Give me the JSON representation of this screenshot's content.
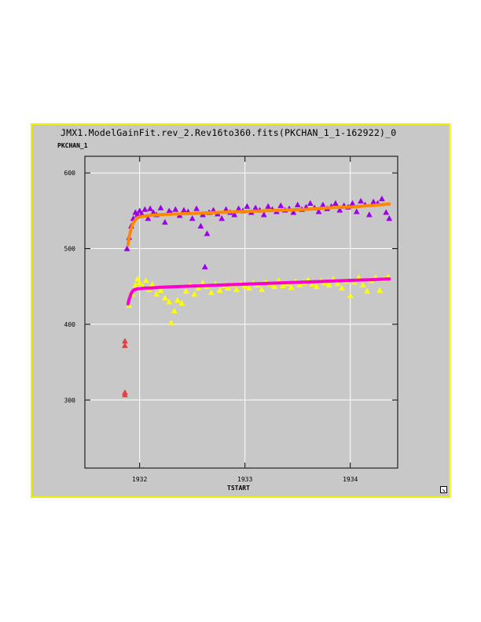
{
  "window": {
    "title": "JMX1.ModelGainFit.rev_2.Rev16to360.fits(PKCHAN_1_1-162922)_0",
    "border_color": "#f0f000",
    "background": "#c8c8c8"
  },
  "resize_icon": "resize-arrow-icon",
  "chart_data": {
    "type": "scatter",
    "title": "JMX1.ModelGainFit.rev_2.Rev16to360.fits(PKCHAN_1_1-162922)_0",
    "xlabel": "TSTART",
    "ylabel": "PKCHAN_1",
    "xlim": [
      1931.48,
      1934.45
    ],
    "ylim": [
      210,
      622
    ],
    "xticks": [
      1932,
      1933,
      1934
    ],
    "yticks": [
      300,
      400,
      500,
      600
    ],
    "grid": true,
    "series": [
      {
        "color": "#9b00e6",
        "marker": "triangle",
        "x": [
          1931.88,
          1931.9,
          1931.92,
          1931.94,
          1931.96,
          1931.98,
          1932.0,
          1932.02,
          1932.05,
          1932.08,
          1932.1,
          1932.13,
          1932.16,
          1932.2,
          1932.24,
          1932.28,
          1932.3,
          1932.34,
          1932.38,
          1932.42,
          1932.46,
          1932.5,
          1932.54,
          1932.58,
          1932.6,
          1932.62,
          1932.64,
          1932.66,
          1932.7,
          1932.74,
          1932.78,
          1932.82,
          1932.86,
          1932.9,
          1932.94,
          1932.98,
          1933.02,
          1933.06,
          1933.1,
          1933.14,
          1933.18,
          1933.22,
          1933.26,
          1933.3,
          1933.34,
          1933.38,
          1933.42,
          1933.46,
          1933.5,
          1933.54,
          1933.58,
          1933.62,
          1933.66,
          1933.7,
          1933.74,
          1933.78,
          1933.82,
          1933.86,
          1933.9,
          1933.94,
          1933.98,
          1934.02,
          1934.06,
          1934.1,
          1934.14,
          1934.18,
          1934.22,
          1934.26,
          1934.3,
          1934.34,
          1934.37
        ],
        "y": [
          500,
          515,
          530,
          540,
          548,
          545,
          550,
          546,
          552,
          540,
          553,
          548,
          545,
          554,
          535,
          550,
          547,
          552,
          544,
          551,
          549,
          540,
          553,
          530,
          545,
          476,
          520,
          548,
          551,
          546,
          540,
          552,
          548,
          545,
          553,
          550,
          556,
          548,
          554,
          551,
          545,
          556,
          552,
          549,
          557,
          551,
          553,
          548,
          558,
          552,
          555,
          560,
          554,
          549,
          558,
          553,
          556,
          560,
          551,
          557,
          555,
          560,
          549,
          563,
          558,
          545,
          562,
          560,
          566,
          548,
          540
        ]
      },
      {
        "color": "#ffff00",
        "marker": "triangle",
        "x": [
          1931.9,
          1931.93,
          1931.96,
          1931.98,
          1932.0,
          1932.03,
          1932.06,
          1932.09,
          1932.12,
          1932.16,
          1932.2,
          1932.24,
          1932.28,
          1932.3,
          1932.33,
          1932.36,
          1932.4,
          1932.44,
          1932.48,
          1932.52,
          1932.56,
          1932.6,
          1932.64,
          1932.68,
          1932.72,
          1932.76,
          1932.8,
          1932.84,
          1932.88,
          1932.92,
          1932.96,
          1933.0,
          1933.04,
          1933.08,
          1933.12,
          1933.16,
          1933.2,
          1933.24,
          1933.28,
          1933.32,
          1933.36,
          1933.4,
          1933.44,
          1933.48,
          1933.52,
          1933.56,
          1933.6,
          1933.64,
          1933.68,
          1933.72,
          1933.76,
          1933.8,
          1933.84,
          1933.88,
          1933.92,
          1933.96,
          1934.0,
          1934.04,
          1934.08,
          1934.12,
          1934.16,
          1934.2,
          1934.24,
          1934.28,
          1934.32,
          1934.36
        ],
        "y": [
          425,
          440,
          452,
          460,
          455,
          450,
          458,
          446,
          453,
          440,
          445,
          435,
          430,
          402,
          418,
          432,
          428,
          444,
          452,
          440,
          448,
          455,
          450,
          442,
          453,
          445,
          451,
          448,
          452,
          446,
          454,
          451,
          448,
          455,
          452,
          446,
          456,
          453,
          450,
          458,
          451,
          454,
          449,
          457,
          452,
          455,
          459,
          453,
          450,
          458,
          455,
          452,
          460,
          454,
          448,
          457,
          438,
          456,
          462,
          452,
          444,
          458,
          462,
          445,
          460,
          463
        ]
      },
      {
        "color": "#ff8800",
        "marker": "line",
        "x": [
          1931.89,
          1931.9,
          1931.92,
          1931.94,
          1931.96,
          1931.98,
          1932.0,
          1932.05,
          1932.1,
          1932.2,
          1932.4,
          1932.6,
          1932.8,
          1933.0,
          1933.2,
          1933.4,
          1933.6,
          1933.8,
          1934.0,
          1934.2,
          1934.37
        ],
        "y": [
          505,
          515,
          527,
          534,
          538,
          541,
          542,
          543,
          544,
          545,
          546,
          547,
          548,
          549,
          550,
          551,
          552,
          554,
          555,
          557,
          559
        ]
      },
      {
        "color": "#ff00cc",
        "marker": "line",
        "x": [
          1931.89,
          1931.9,
          1931.92,
          1931.94,
          1931.96,
          1931.98,
          1932.0,
          1932.05,
          1932.1,
          1932.2,
          1932.4,
          1932.6,
          1932.8,
          1933.0,
          1933.2,
          1933.4,
          1933.6,
          1933.8,
          1934.0,
          1934.2,
          1934.37
        ],
        "y": [
          427,
          433,
          441,
          445,
          446,
          447,
          447,
          448,
          448,
          449,
          450,
          451,
          452,
          453,
          454,
          455,
          456,
          457,
          458,
          459,
          460
        ]
      },
      {
        "color": "#e04040",
        "marker": "triangle",
        "x": [
          1931.86,
          1931.86,
          1931.86,
          1931.86
        ],
        "y": [
          378,
          372,
          310,
          307
        ]
      }
    ]
  }
}
